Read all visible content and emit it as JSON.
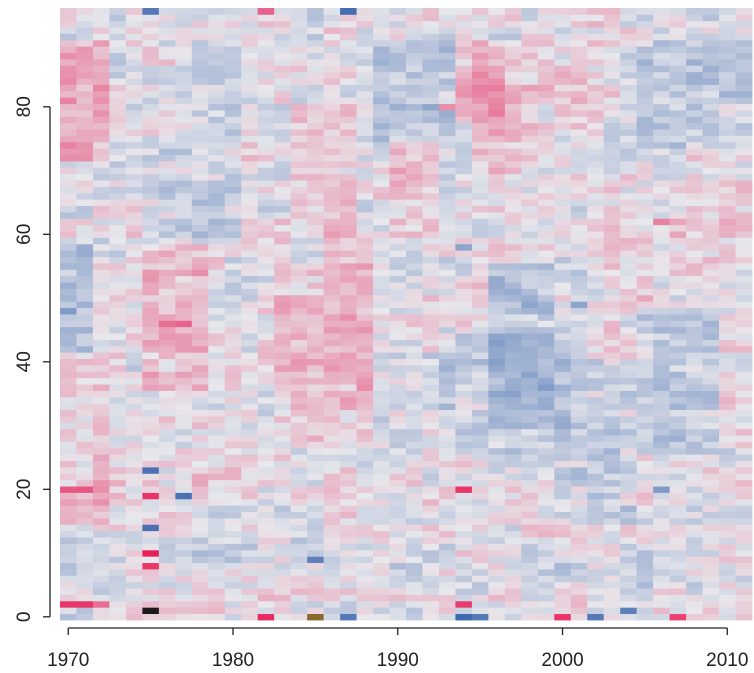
{
  "chart_data": {
    "type": "heatmap",
    "title": "",
    "xlabel": "",
    "ylabel": "",
    "xlim": [
      1969.5,
      2011.5
    ],
    "ylim": [
      0,
      95
    ],
    "x_ticks": [
      1970,
      1980,
      1990,
      2000,
      2010
    ],
    "y_ticks": [
      0,
      20,
      40,
      60,
      80
    ],
    "x_tick_labels": [
      "1970",
      "1980",
      "1990",
      "2000",
      "2010"
    ],
    "y_tick_labels": [
      "0",
      "20",
      "40",
      "60",
      "80"
    ],
    "x_start": 1970,
    "x_step": 1,
    "y_start": 0,
    "y_step": 1,
    "color_scale": {
      "low": "#2b5aa8",
      "mid": "#e8e8ec",
      "high": "#e8205a",
      "extreme_low": "#8a6a2a",
      "extreme_high": "#1a1a1a"
    },
    "z_range": [
      -3,
      3
    ],
    "highlights": [
      {
        "x": 1970,
        "y": 2,
        "value": 2.6
      },
      {
        "x": 1971,
        "y": 2,
        "value": 2.6
      },
      {
        "x": 1972,
        "y": 2,
        "value": 1.6
      },
      {
        "x": 1970,
        "y": 20,
        "value": 2.0
      },
      {
        "x": 1971,
        "y": 20,
        "value": 2.0
      },
      {
        "x": 1975,
        "y": 1,
        "value": 3.5
      },
      {
        "x": 1975,
        "y": 10,
        "value": 3.0
      },
      {
        "x": 1975,
        "y": 8,
        "value": 2.6
      },
      {
        "x": 1975,
        "y": 19,
        "value": 2.6
      },
      {
        "x": 1975,
        "y": 14,
        "value": -2.4
      },
      {
        "x": 1975,
        "y": 23,
        "value": -2.4
      },
      {
        "x": 1975,
        "y": 95,
        "value": -2.2
      },
      {
        "x": 1977,
        "y": 19,
        "value": -2.4
      },
      {
        "x": 1982,
        "y": 0,
        "value": 2.8
      },
      {
        "x": 1982,
        "y": 95,
        "value": 1.8
      },
      {
        "x": 1985,
        "y": 0,
        "value": -3.4
      },
      {
        "x": 1985,
        "y": 9,
        "value": -2.0
      },
      {
        "x": 1987,
        "y": 95,
        "value": -2.5
      },
      {
        "x": 1987,
        "y": 0,
        "value": -2.2
      },
      {
        "x": 1994,
        "y": 20,
        "value": 2.6
      },
      {
        "x": 1994,
        "y": 2,
        "value": 2.5
      },
      {
        "x": 1994,
        "y": 0,
        "value": -2.6
      },
      {
        "x": 1995,
        "y": 0,
        "value": -2.2
      },
      {
        "x": 2000,
        "y": 0,
        "value": 2.6
      },
      {
        "x": 2002,
        "y": 0,
        "value": -2.2
      },
      {
        "x": 2004,
        "y": 1,
        "value": -2.0
      },
      {
        "x": 2007,
        "y": 0,
        "value": 2.4
      },
      {
        "x": 1977,
        "y": 46,
        "value": 1.8
      },
      {
        "x": 1976,
        "y": 46,
        "value": 1.6
      },
      {
        "x": 1970,
        "y": 48,
        "value": -1.4
      },
      {
        "x": 1970,
        "y": 81,
        "value": 1.3
      },
      {
        "x": 1998,
        "y": 49,
        "value": -1.2
      },
      {
        "x": 2001,
        "y": 49,
        "value": -1.2
      },
      {
        "x": 1994,
        "y": 58,
        "value": -1.2
      },
      {
        "x": 2006,
        "y": 62,
        "value": 1.3
      },
      {
        "x": 2006,
        "y": 20,
        "value": -1.4
      },
      {
        "x": 1993,
        "y": 80,
        "value": 1.1
      }
    ]
  }
}
